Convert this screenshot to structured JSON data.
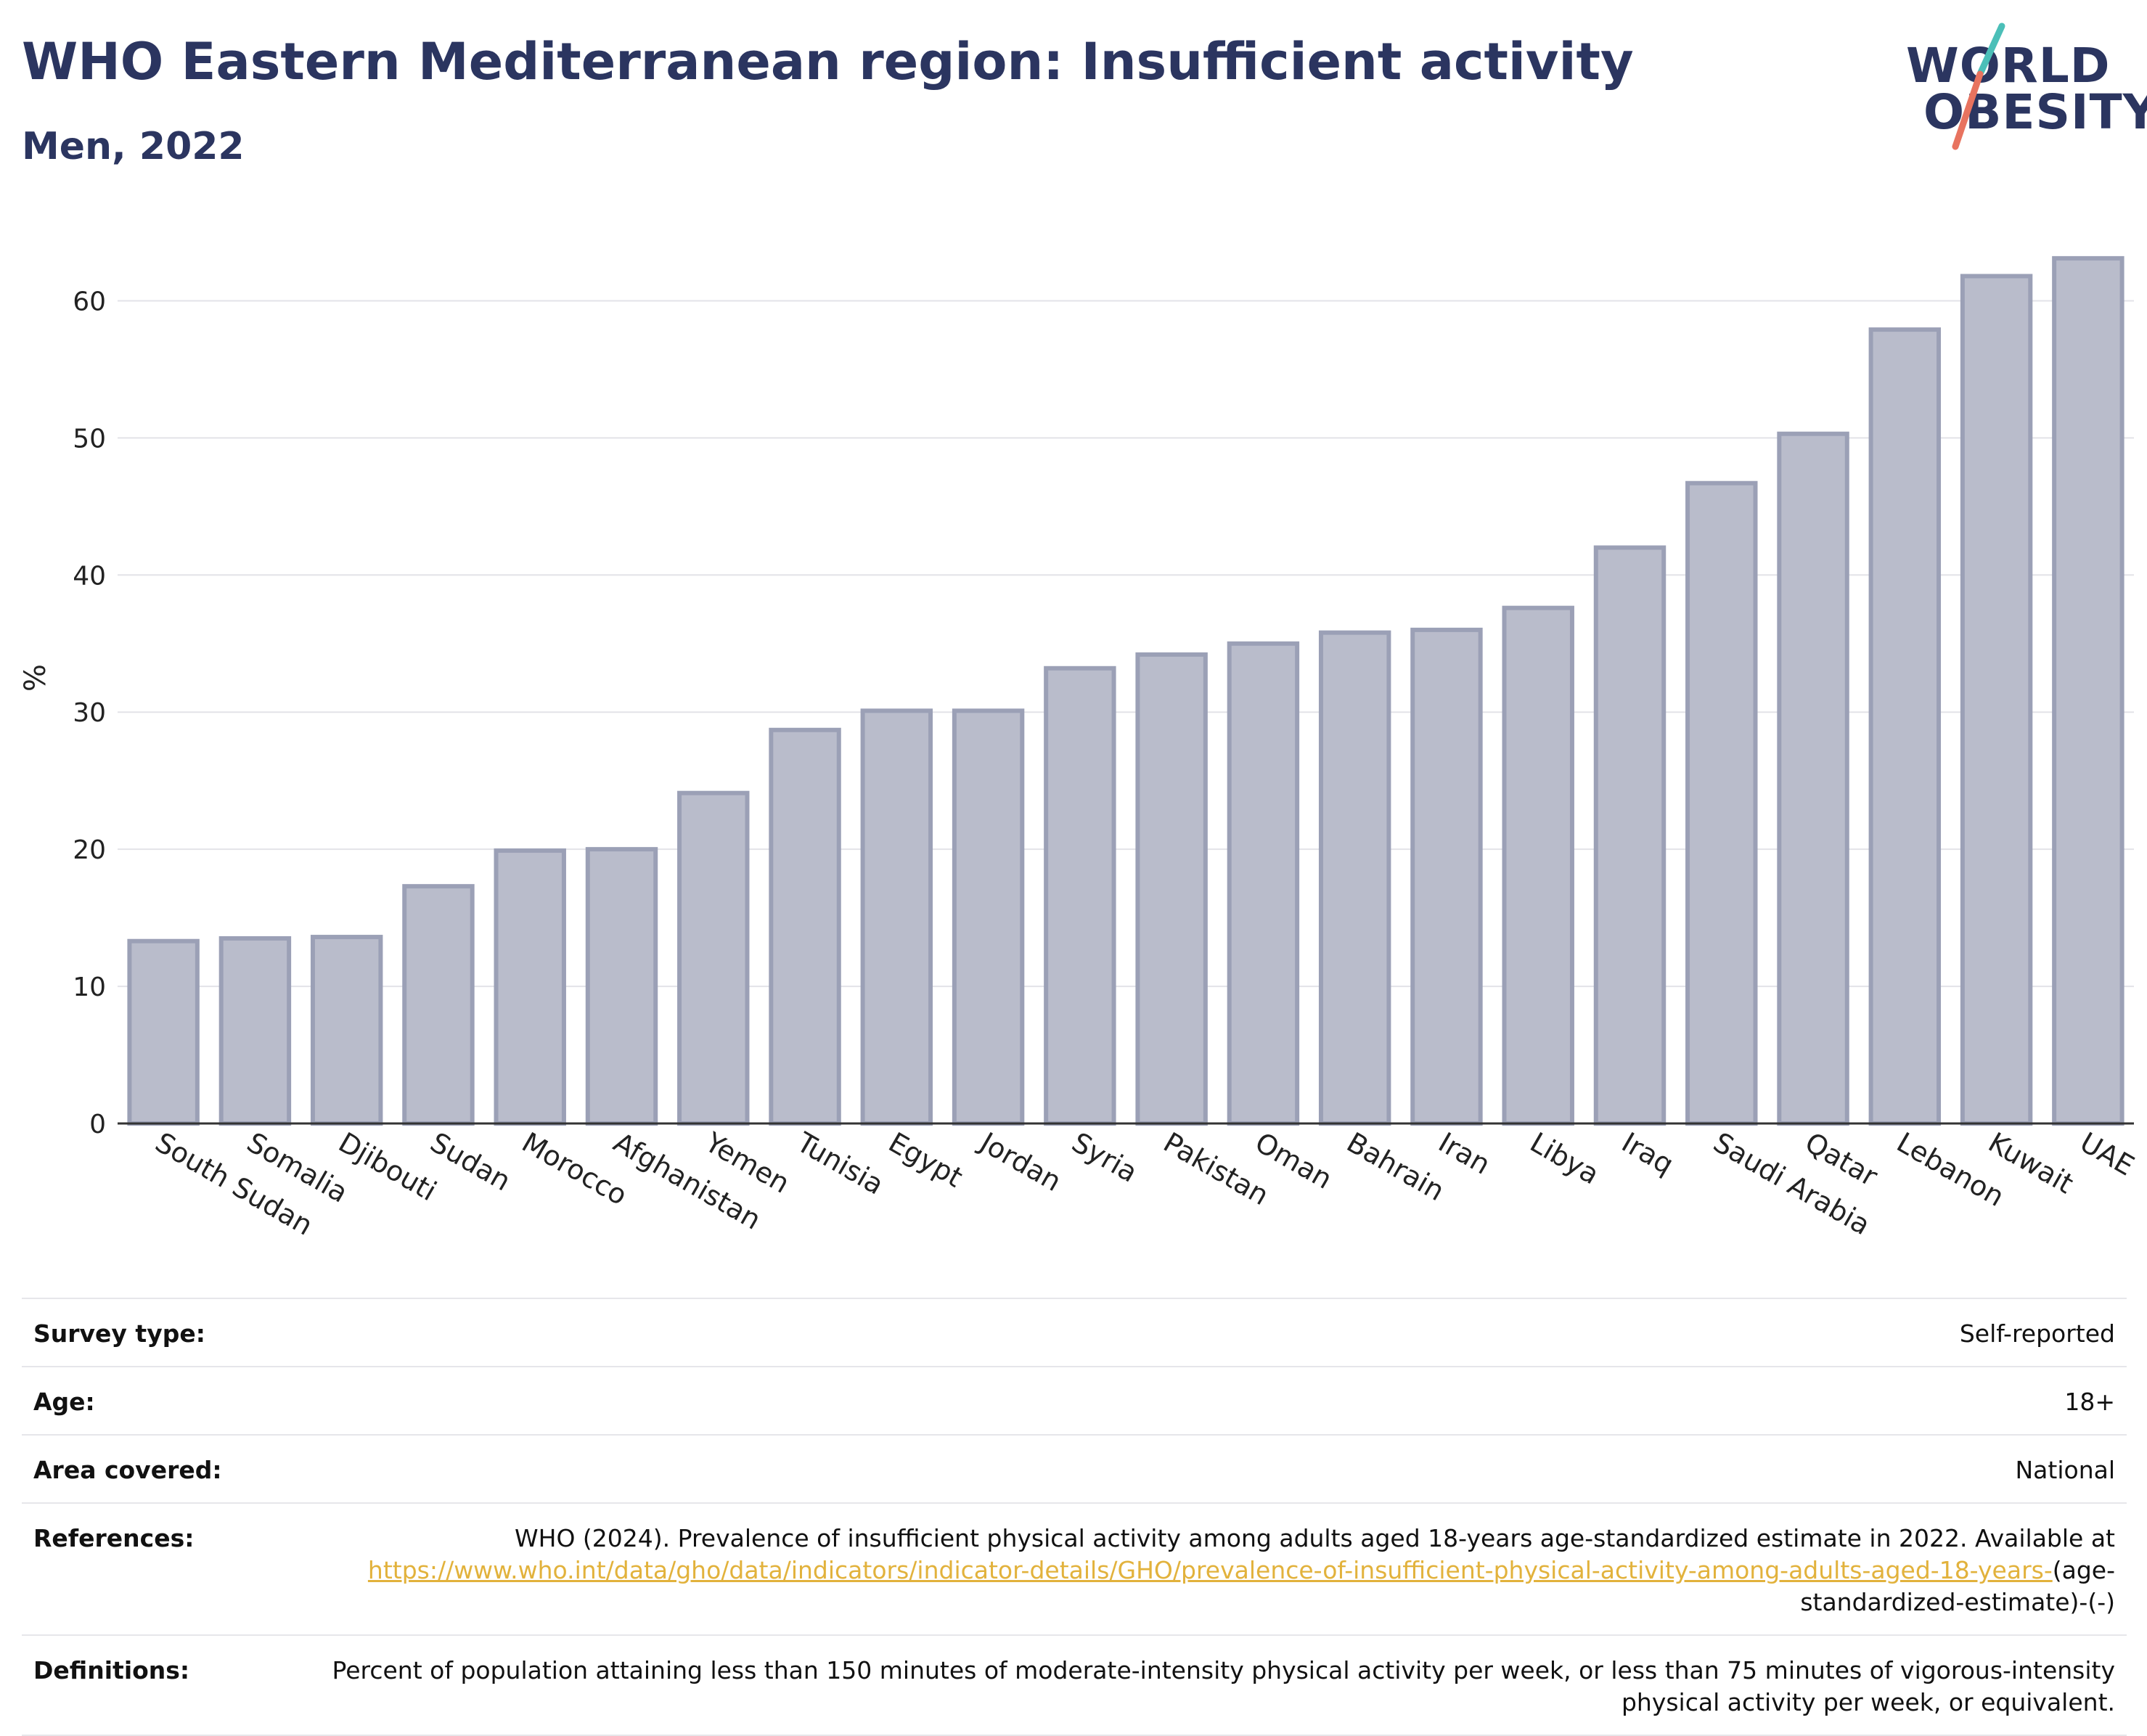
{
  "header": {
    "title": "WHO Eastern Mediterranean region: Insufficient activity",
    "subtitle": "Men, 2022"
  },
  "logo": {
    "line1": "WORLD",
    "line2": "OBESITY",
    "accent_colors": [
      "#4bbfb8",
      "#e8735f"
    ]
  },
  "chart_data": {
    "type": "bar",
    "ylabel": "%",
    "ylim": [
      0,
      65
    ],
    "yticks": [
      0,
      10,
      20,
      30,
      40,
      50,
      60
    ],
    "grid": true,
    "bar_color": "#b9bccb",
    "bar_edge_color": "#9ba0b6",
    "categories": [
      "South Sudan",
      "Somalia",
      "Djibouti",
      "Sudan",
      "Morocco",
      "Afghanistan",
      "Yemen",
      "Tunisia",
      "Egypt",
      "Jordan",
      "Syria",
      "Pakistan",
      "Oman",
      "Bahrain",
      "Iran",
      "Libya",
      "Iraq",
      "Saudi Arabia",
      "Qatar",
      "Lebanon",
      "Kuwait",
      "UAE"
    ],
    "values": [
      13.3,
      13.5,
      13.6,
      17.3,
      19.9,
      20.0,
      24.1,
      28.7,
      30.1,
      30.1,
      33.2,
      34.2,
      35.0,
      35.8,
      36.0,
      37.6,
      42.0,
      46.7,
      50.3,
      57.9,
      61.8,
      63.1
    ]
  },
  "meta": {
    "survey_type": {
      "label": "Survey type:",
      "value": "Self-reported"
    },
    "age": {
      "label": "Age:",
      "value": "18+"
    },
    "area": {
      "label": "Area covered:",
      "value": "National"
    },
    "references": {
      "label": "References:",
      "text": "WHO (2024). Prevalence of insufficient physical activity among adults aged 18-years age-standardized estimate in 2022. Available at",
      "link": "https://www.who.int/data/gho/data/indicators/indicator-details/GHO/prevalence-of-insufficient-physical-activity-among-adults-aged-18-years-",
      "suffix": "(age-standardized-estimate)-(-)"
    },
    "definitions": {
      "label": "Definitions:",
      "value": "Percent of population attaining less than 150 minutes of moderate-intensity physical activity per week, or less than 75 minutes of vigorous-intensity physical activity per week, or equivalent."
    }
  }
}
